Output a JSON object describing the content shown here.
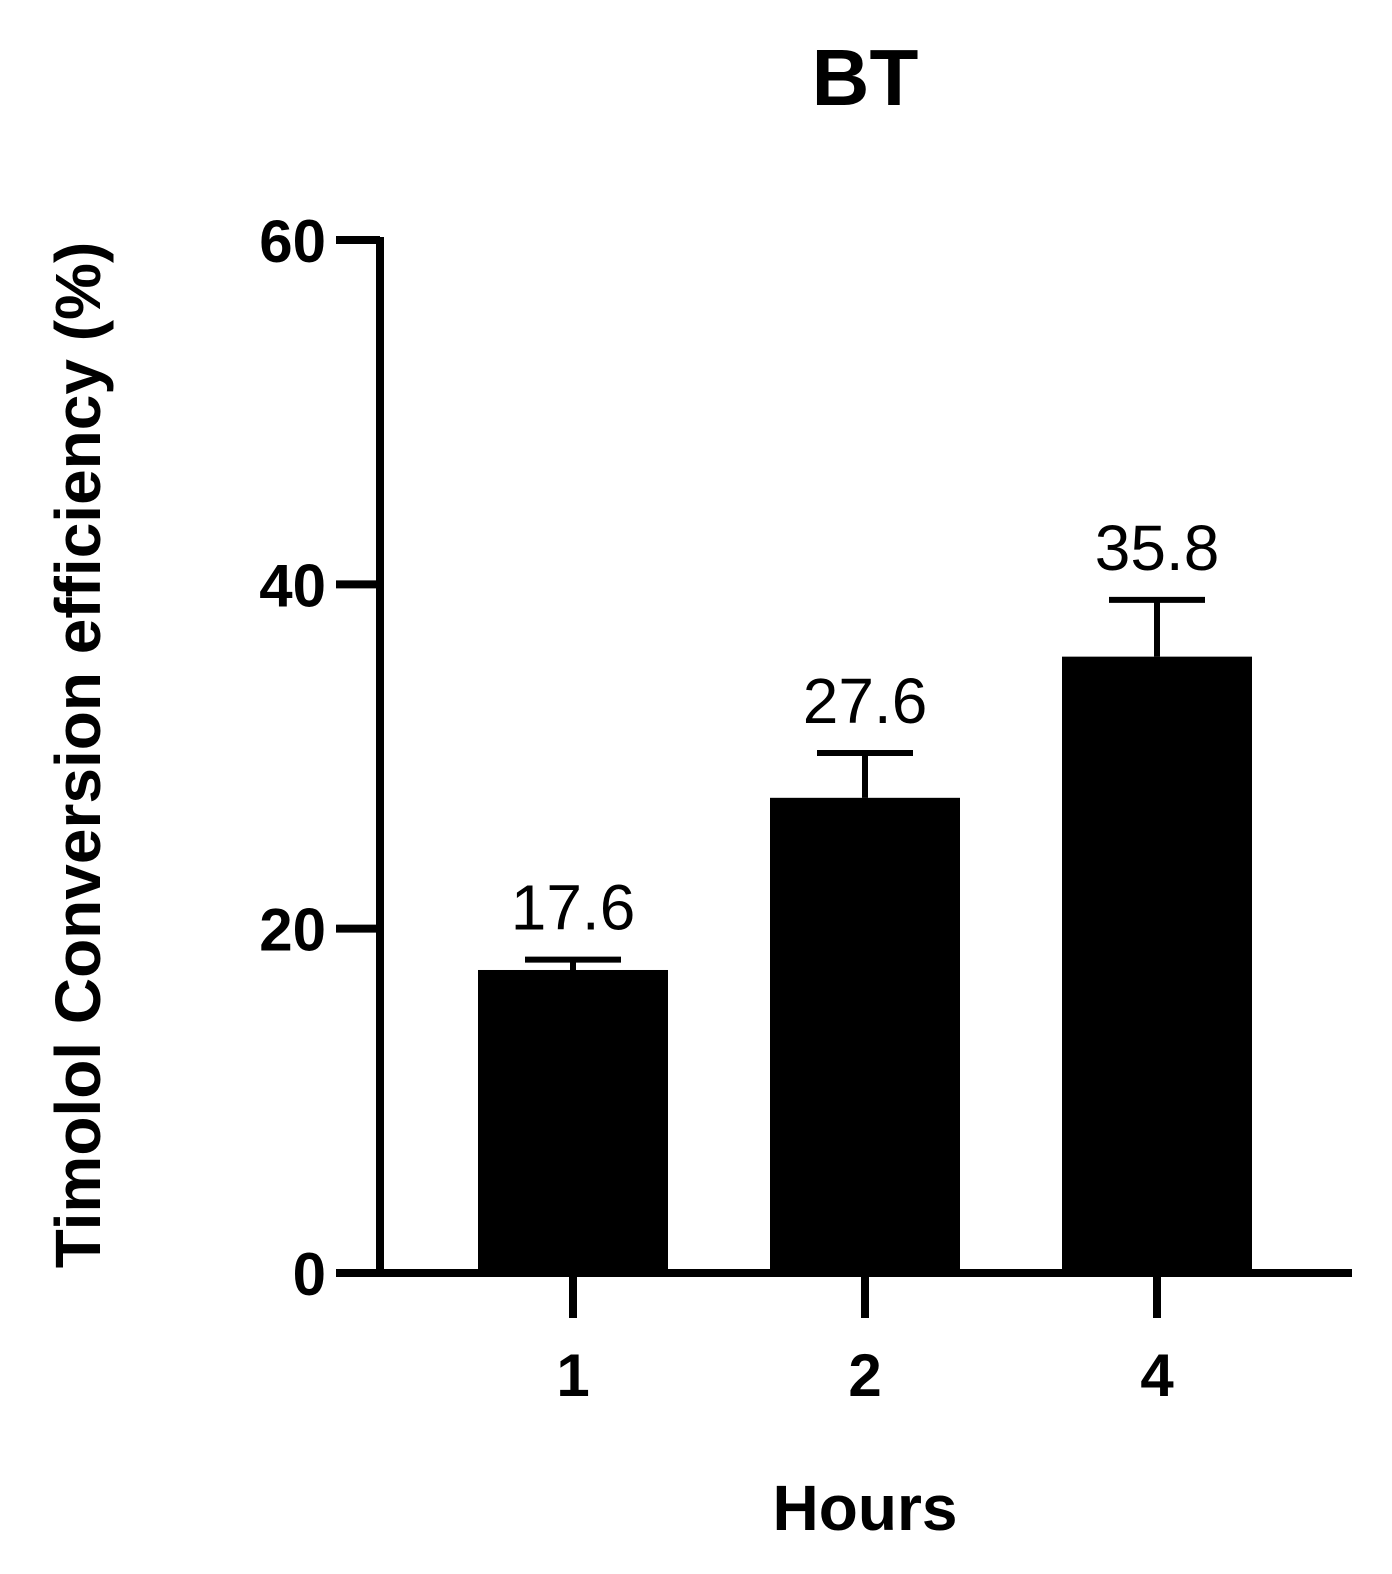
{
  "chart_data": {
    "type": "bar",
    "title": "BT",
    "xlabel": "Hours",
    "ylabel": "Timolol Conversion efficiency (%)",
    "categories": [
      "1",
      "2",
      "4"
    ],
    "values": [
      17.6,
      27.6,
      35.8
    ],
    "error_upper": [
      18.2,
      30.2,
      39.1
    ],
    "data_labels": [
      "17.6",
      "27.6",
      "35.8"
    ],
    "ylim": [
      0,
      60
    ],
    "yticks": [
      0,
      20,
      40,
      60
    ],
    "ytick_labels": [
      "0",
      "20",
      "40",
      "60"
    ],
    "grid": false,
    "legend": "none",
    "bar_color": "#000000"
  }
}
